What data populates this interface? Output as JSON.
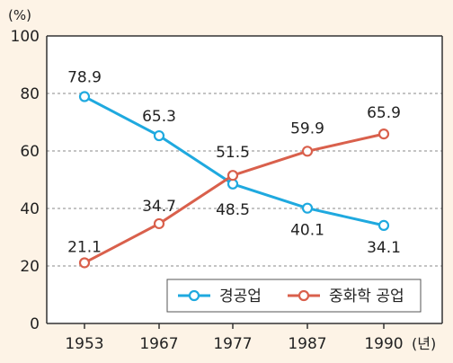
{
  "chart_data": {
    "type": "line",
    "unit_label": "(%)",
    "x_unit_label": "(년)",
    "categories": [
      "1953",
      "1967",
      "1977",
      "1987",
      "1990"
    ],
    "ylim": [
      0,
      100
    ],
    "yticks": [
      0,
      20,
      40,
      60,
      80,
      100
    ],
    "grid": true,
    "legend_position": "bottom-right",
    "series": [
      {
        "name": "경공업",
        "color": "#1fa9df",
        "values": [
          78.9,
          65.3,
          48.5,
          40.1,
          34.1
        ]
      },
      {
        "name": "중화학 공업",
        "color": "#d9604c",
        "values": [
          21.1,
          34.7,
          51.5,
          59.9,
          65.9
        ]
      }
    ]
  }
}
